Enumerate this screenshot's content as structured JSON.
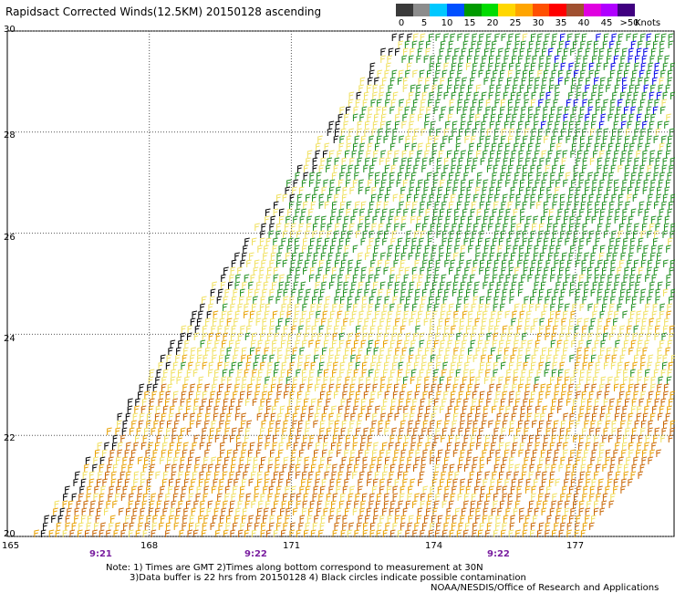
{
  "title": "Rapidsact Corrected Winds(12.5KM) 20150128 ascending",
  "legend": {
    "colors": [
      "#3a3a3a",
      "#8c8c8c",
      "#00c8ff",
      "#0050ff",
      "#009a00",
      "#00dc00",
      "#ffd700",
      "#ffa500",
      "#ff5000",
      "#ff0000",
      "#a05030",
      "#e000e0",
      "#b000ff",
      "#400080"
    ],
    "labels": [
      "0",
      "5",
      "10",
      "15",
      "20",
      "25",
      "30",
      "35",
      "40",
      "45",
      ">50"
    ],
    "units": "Knots"
  },
  "axes": {
    "latitudes": [
      "30",
      "28",
      "26",
      "24",
      "22",
      "20"
    ],
    "longitudes": [
      "165",
      "168",
      "171",
      "174",
      "177"
    ]
  },
  "times": [
    "9:21",
    "9:22",
    "9:22"
  ],
  "notes": {
    "line1": "Note: 1) Times are GMT 2)Times along bottom correspond to measurement at 30N",
    "line2": "3)Data buffer is 22 hrs from 20150128 4) Black circles indicate possible contamination",
    "line3": "NOAA/NESDIS/Office of Research and Applications"
  },
  "map": {
    "lon_range": [
      165,
      178.7
    ],
    "lat_range": [
      20,
      30
    ],
    "barb_colors": {
      "black": "#000000",
      "blue": "#0000e6",
      "green": "#1f8f1f",
      "yellow": "#f0e060",
      "orange": "#e8a000",
      "dark_orange": "#c86400"
    }
  }
}
